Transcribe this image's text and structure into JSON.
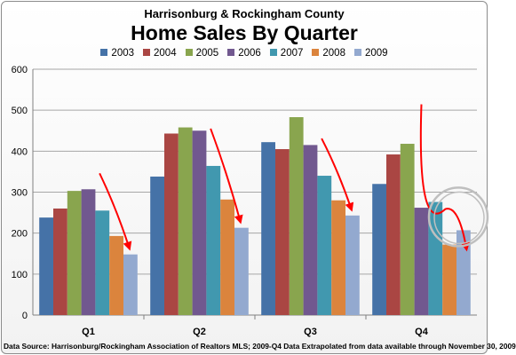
{
  "chart_data": {
    "type": "bar",
    "subtitle": "Harrisonburg & Rockingham County",
    "title": "Home Sales By Quarter",
    "xlabel": "",
    "ylabel": "",
    "categories": [
      "Q1",
      "Q2",
      "Q3",
      "Q4"
    ],
    "ylim": [
      0,
      600
    ],
    "yticks": [
      "0",
      "100",
      "200",
      "300",
      "400",
      "500",
      "600"
    ],
    "grid": true,
    "legend_position": "top",
    "series": [
      {
        "name": "2003",
        "color": "#4572a7",
        "values": [
          238,
          338,
          422,
          320
        ]
      },
      {
        "name": "2004",
        "color": "#aa4643",
        "values": [
          260,
          443,
          405,
          392
        ]
      },
      {
        "name": "2005",
        "color": "#89a54e",
        "values": [
          303,
          458,
          483,
          418
        ]
      },
      {
        "name": "2006",
        "color": "#71588f",
        "values": [
          307,
          450,
          415,
          262
        ]
      },
      {
        "name": "2007",
        "color": "#4198af",
        "values": [
          255,
          364,
          340,
          276
        ]
      },
      {
        "name": "2008",
        "color": "#db843d",
        "values": [
          193,
          282,
          280,
          172
        ]
      },
      {
        "name": "2009",
        "color": "#93a9cf",
        "values": [
          148,
          213,
          243,
          207
        ]
      }
    ],
    "annotations": [
      {
        "type": "trend-arrow",
        "category": "Q1",
        "color": "#ff0000"
      },
      {
        "type": "trend-arrow",
        "category": "Q2",
        "color": "#ff0000"
      },
      {
        "type": "trend-arrow",
        "category": "Q3",
        "color": "#ff0000"
      },
      {
        "type": "curved-arrow",
        "category": "Q4",
        "color": "#ff0000"
      },
      {
        "type": "highlight-circle",
        "category": "Q4",
        "color": "#bfbfbf"
      }
    ]
  },
  "source_note": "Data Source:  Harrisonburg/Rockingham  Association of Realtors MLS; 2009-Q4 Data Extrapolated  from data available through November 30, 2009"
}
